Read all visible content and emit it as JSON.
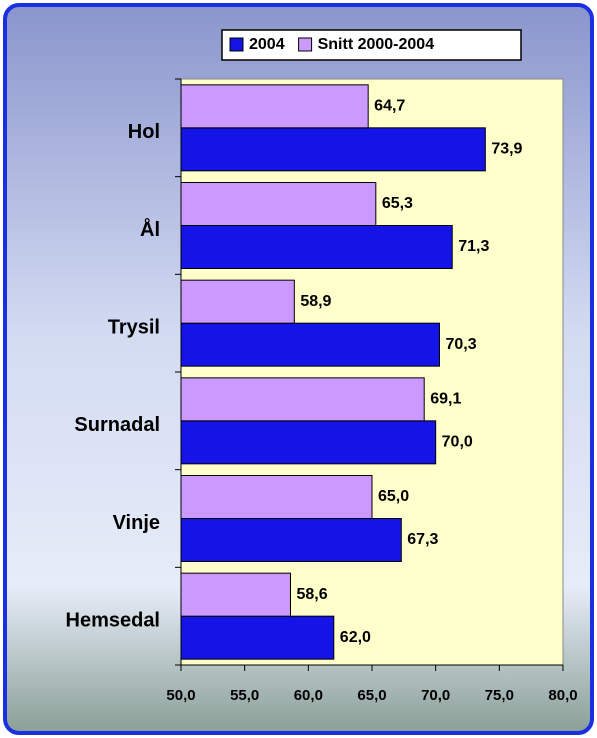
{
  "chart_data": {
    "type": "bar",
    "orientation": "horizontal",
    "categories": [
      "Hol",
      "Ål",
      "Trysil",
      "Surnadal",
      "Vinje",
      "Hemsedal"
    ],
    "series": [
      {
        "name": "2004",
        "color": "#1414e6",
        "values": [
          73.9,
          71.3,
          70.3,
          70.0,
          67.3,
          62.0
        ],
        "value_labels": [
          "73,9",
          "71,3",
          "70,3",
          "70,0",
          "67,3",
          "62,0"
        ]
      },
      {
        "name": "Snitt 2000-2004",
        "color": "#cc99ff",
        "values": [
          64.7,
          65.3,
          58.9,
          69.1,
          65.0,
          58.6
        ],
        "value_labels": [
          "64,7",
          "65,3",
          "58,9",
          "69,1",
          "65,0",
          "58,6"
        ]
      }
    ],
    "xlim": [
      50,
      80
    ],
    "xticks": [
      {
        "value": 50,
        "label": "50,0"
      },
      {
        "value": 55,
        "label": "55,0"
      },
      {
        "value": 60,
        "label": "60,0"
      },
      {
        "value": 65,
        "label": "65,0"
      },
      {
        "value": 70,
        "label": "70,0"
      },
      {
        "value": 75,
        "label": "75,0"
      },
      {
        "value": 80,
        "label": "80,0"
      }
    ],
    "grid": false,
    "legend": "top"
  }
}
